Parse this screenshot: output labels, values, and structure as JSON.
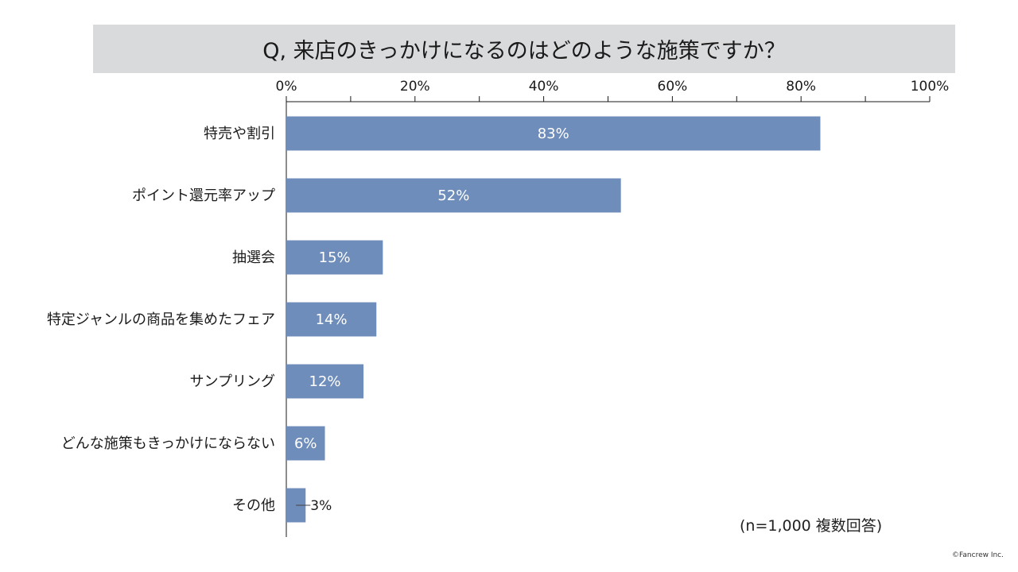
{
  "title": "Q, 来店のきっかけになるのはどのような施策ですか？",
  "note": "(n=1,000 複数回答)",
  "copyright": "©Fancrew Inc.",
  "colors": {
    "bar": "#6f8dba",
    "title_background": "#d9dadc",
    "axis": "#1a1a1a",
    "bar_label": "#ffffff"
  },
  "chart_data": {
    "type": "bar",
    "orientation": "horizontal",
    "categories": [
      "特売や割引",
      "ポイント還元率アップ",
      "抽選会",
      "特定ジャンルの商品を集めたフェア",
      "サンプリング",
      "どんな施策もきっかけにならない",
      "その他"
    ],
    "values": [
      83,
      52,
      15,
      14,
      12,
      6,
      3
    ],
    "value_labels": [
      "83%",
      "52%",
      "15%",
      "14%",
      "12%",
      "6%",
      "3%"
    ],
    "xlim": [
      0,
      100
    ],
    "x_ticks": [
      "0%",
      "20%",
      "40%",
      "60%",
      "80%",
      "100%"
    ],
    "x_axis_position": "top",
    "grid": false,
    "legend": "none"
  }
}
